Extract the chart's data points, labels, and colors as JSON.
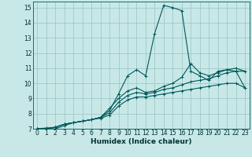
{
  "xlabel": "Humidex (Indice chaleur)",
  "xlim": [
    -0.5,
    23.5
  ],
  "ylim": [
    7,
    15.4
  ],
  "yticks": [
    7,
    8,
    9,
    10,
    11,
    12,
    13,
    14,
    15
  ],
  "xticks": [
    0,
    1,
    2,
    3,
    4,
    5,
    6,
    7,
    8,
    9,
    10,
    11,
    12,
    13,
    14,
    15,
    16,
    17,
    18,
    19,
    20,
    21,
    22,
    23
  ],
  "background_color": "#c8e8e8",
  "grid_color": "#a0c8c8",
  "line_color": "#005858",
  "lines": [
    {
      "x": [
        0,
        1,
        2,
        3,
        4,
        5,
        6,
        7,
        8,
        9,
        10,
        11,
        12,
        13,
        14,
        15,
        16,
        17,
        18,
        19,
        20,
        21,
        22,
        23
      ],
      "y": [
        7.0,
        7.05,
        7.1,
        7.3,
        7.4,
        7.5,
        7.6,
        7.75,
        8.2,
        9.3,
        10.5,
        10.9,
        10.5,
        13.3,
        15.15,
        15.0,
        14.8,
        10.8,
        10.5,
        10.2,
        10.8,
        10.9,
        10.8,
        9.7
      ]
    },
    {
      "x": [
        0,
        1,
        2,
        3,
        4,
        5,
        6,
        7,
        8,
        9,
        10,
        11,
        12,
        13,
        14,
        15,
        16,
        17,
        18,
        19,
        20,
        21,
        22,
        23
      ],
      "y": [
        7.0,
        7.0,
        7.1,
        7.3,
        7.4,
        7.5,
        7.6,
        7.75,
        8.35,
        9.0,
        9.5,
        9.7,
        9.4,
        9.5,
        9.8,
        10.0,
        10.4,
        11.3,
        10.7,
        10.5,
        10.7,
        10.9,
        11.0,
        10.8
      ]
    },
    {
      "x": [
        0,
        1,
        2,
        3,
        4,
        5,
        6,
        7,
        8,
        9,
        10,
        11,
        12,
        13,
        14,
        15,
        16,
        17,
        18,
        19,
        20,
        21,
        22,
        23
      ],
      "y": [
        7.0,
        7.0,
        7.1,
        7.3,
        7.4,
        7.5,
        7.6,
        7.75,
        8.05,
        8.75,
        9.2,
        9.4,
        9.3,
        9.4,
        9.6,
        9.7,
        9.9,
        10.1,
        10.2,
        10.3,
        10.5,
        10.7,
        10.8,
        10.8
      ]
    },
    {
      "x": [
        0,
        1,
        2,
        3,
        4,
        5,
        6,
        7,
        8,
        9,
        10,
        11,
        12,
        13,
        14,
        15,
        16,
        17,
        18,
        19,
        20,
        21,
        22,
        23
      ],
      "y": [
        7.0,
        7.0,
        7.0,
        7.2,
        7.4,
        7.5,
        7.6,
        7.7,
        7.9,
        8.5,
        8.9,
        9.1,
        9.1,
        9.2,
        9.3,
        9.4,
        9.5,
        9.6,
        9.7,
        9.8,
        9.9,
        10.0,
        10.0,
        9.7
      ]
    }
  ]
}
